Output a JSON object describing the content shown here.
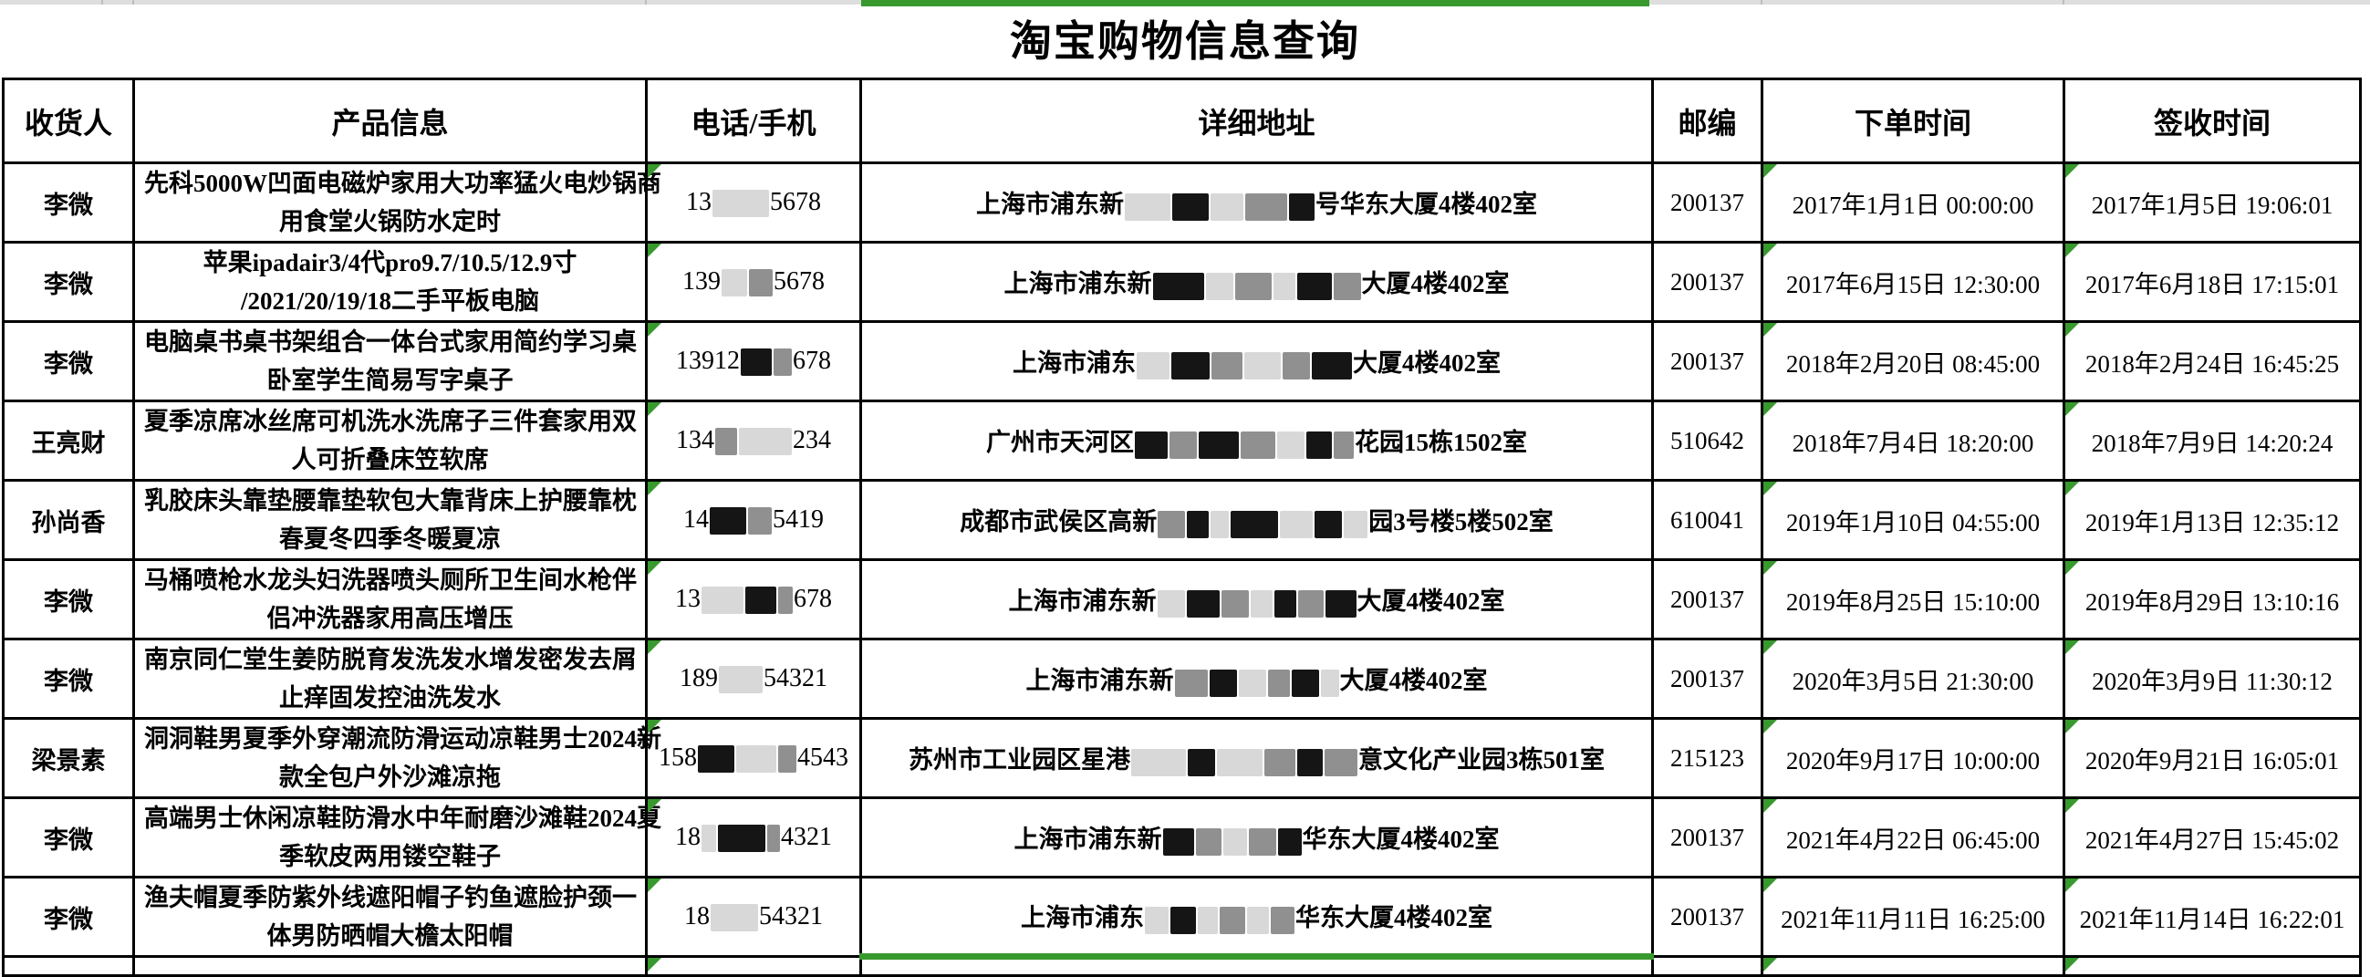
{
  "colors": {
    "accent_green": "#38992e",
    "strip_gray": "#dedede",
    "table_border": "#000000",
    "censor_light": "#d8d8d8",
    "censor_mid": "#909090",
    "censor_dark": "#151515"
  },
  "title": "淘宝购物信息查询",
  "table": {
    "columns": [
      "收货人",
      "产品信息",
      "电话/手机",
      "详细地址",
      "邮编",
      "下单时间",
      "签收时间"
    ],
    "rows": [
      {
        "recipient": "李微",
        "product_lines": [
          "先科5000W凹面电磁炉家用大功率猛火电炒锅商",
          "用食堂火锅防水定时"
        ],
        "phone_segments": [
          {
            "text": "13"
          },
          {
            "mask": "light",
            "width": 62
          },
          {
            "text": "5678"
          }
        ],
        "address_segments": [
          {
            "text": "上海市浦东新"
          },
          {
            "mask": "light",
            "width": 50
          },
          {
            "mask": "dark",
            "width": 40
          },
          {
            "mask": "light",
            "width": 36
          },
          {
            "mask": "mid",
            "width": 46
          },
          {
            "mask": "dark",
            "width": 28
          },
          {
            "text": "号华东大厦4楼402室"
          }
        ],
        "zip": "200137",
        "order_time": "2017年1月1日 00:00:00",
        "sign_time": "2017年1月5日 19:06:01"
      },
      {
        "recipient": "李微",
        "product_lines": [
          "苹果ipadair3/4代pro9.7/10.5/12.9寸",
          "/2021/20/19/18二手平板电脑"
        ],
        "phone_segments": [
          {
            "text": "139"
          },
          {
            "mask": "light",
            "width": 28
          },
          {
            "mask": "mid",
            "width": 26
          },
          {
            "text": "5678"
          }
        ],
        "address_segments": [
          {
            "text": "上海市浦东新"
          },
          {
            "mask": "dark",
            "width": 56
          },
          {
            "mask": "light",
            "width": 30
          },
          {
            "mask": "mid",
            "width": 40
          },
          {
            "mask": "light",
            "width": 24
          },
          {
            "mask": "dark",
            "width": 38
          },
          {
            "mask": "mid",
            "width": 30
          },
          {
            "text": "大厦4楼402室"
          }
        ],
        "zip": "200137",
        "order_time": "2017年6月15日 12:30:00",
        "sign_time": "2017年6月18日 17:15:01"
      },
      {
        "recipient": "李微",
        "product_lines": [
          "电脑桌书桌书架组合一体台式家用简约学习桌",
          "卧室学生简易写字桌子"
        ],
        "phone_segments": [
          {
            "text": "13912"
          },
          {
            "mask": "dark",
            "width": 34
          },
          {
            "mask": "mid",
            "width": 20
          },
          {
            "text": "678"
          }
        ],
        "address_segments": [
          {
            "text": "上海市浦东"
          },
          {
            "mask": "light",
            "width": 36
          },
          {
            "mask": "dark",
            "width": 42
          },
          {
            "mask": "mid",
            "width": 34
          },
          {
            "mask": "light",
            "width": 40
          },
          {
            "mask": "mid",
            "width": 30
          },
          {
            "mask": "dark",
            "width": 44
          },
          {
            "text": "大厦4楼402室"
          }
        ],
        "zip": "200137",
        "order_time": "2018年2月20日 08:45:00",
        "sign_time": "2018年2月24日 16:45:25"
      },
      {
        "recipient": "王亮财",
        "product_lines": [
          "夏季凉席冰丝席可机洗水洗席子三件套家用双",
          "人可折叠床笠软席"
        ],
        "phone_segments": [
          {
            "text": "134"
          },
          {
            "mask": "mid",
            "width": 24
          },
          {
            "mask": "light",
            "width": 58
          },
          {
            "text": "234"
          }
        ],
        "address_segments": [
          {
            "text": "广州市天河区"
          },
          {
            "mask": "dark",
            "width": 36
          },
          {
            "mask": "mid",
            "width": 30
          },
          {
            "mask": "dark",
            "width": 44
          },
          {
            "mask": "mid",
            "width": 38
          },
          {
            "mask": "light",
            "width": 30
          },
          {
            "mask": "dark",
            "width": 28
          },
          {
            "mask": "mid",
            "width": 22
          },
          {
            "text": "花园15栋1502室"
          }
        ],
        "zip": "510642",
        "order_time": "2018年7月4日 18:20:00",
        "sign_time": "2018年7月9日 14:20:24"
      },
      {
        "recipient": "孙尚香",
        "product_lines": [
          "乳胶床头靠垫腰靠垫软包大靠背床上护腰靠枕",
          "春夏冬四季冬暖夏凉"
        ],
        "phone_segments": [
          {
            "text": "14"
          },
          {
            "mask": "dark",
            "width": 40
          },
          {
            "mask": "mid",
            "width": 26
          },
          {
            "text": "5419"
          }
        ],
        "address_segments": [
          {
            "text": "成都市武侯区高新"
          },
          {
            "mask": "mid",
            "width": 30
          },
          {
            "mask": "dark",
            "width": 24
          },
          {
            "mask": "light",
            "width": 20
          },
          {
            "mask": "dark",
            "width": 52
          },
          {
            "mask": "light",
            "width": 36
          },
          {
            "mask": "dark",
            "width": 30
          },
          {
            "mask": "light",
            "width": 26
          },
          {
            "text": "园3号楼5楼502室"
          }
        ],
        "zip": "610041",
        "order_time": "2019年1月10日 04:55:00",
        "sign_time": "2019年1月13日 12:35:12"
      },
      {
        "recipient": "李微",
        "product_lines": [
          "马桶喷枪水龙头妇洗器喷头厕所卫生间水枪伴",
          "侣冲洗器家用高压增压"
        ],
        "phone_segments": [
          {
            "text": "13"
          },
          {
            "mask": "light",
            "width": 46
          },
          {
            "mask": "dark",
            "width": 34
          },
          {
            "mask": "mid",
            "width": 16
          },
          {
            "text": "678"
          }
        ],
        "address_segments": [
          {
            "text": "上海市浦东新"
          },
          {
            "mask": "light",
            "width": 30
          },
          {
            "mask": "dark",
            "width": 36
          },
          {
            "mask": "mid",
            "width": 30
          },
          {
            "mask": "light",
            "width": 24
          },
          {
            "mask": "dark",
            "width": 24
          },
          {
            "mask": "mid",
            "width": 28
          },
          {
            "mask": "dark",
            "width": 34
          },
          {
            "text": "大厦4楼402室"
          }
        ],
        "zip": "200137",
        "order_time": "2019年8月25日 15:10:00",
        "sign_time": "2019年8月29日 13:10:16"
      },
      {
        "recipient": "李微",
        "product_lines": [
          "南京同仁堂生姜防脱育发洗发水增发密发去屑",
          "止痒固发控油洗发水"
        ],
        "phone_segments": [
          {
            "text": "189"
          },
          {
            "mask": "light",
            "width": 48
          },
          {
            "text": "54321"
          }
        ],
        "address_segments": [
          {
            "text": "上海市浦东新"
          },
          {
            "mask": "mid",
            "width": 36
          },
          {
            "mask": "dark",
            "width": 30
          },
          {
            "mask": "light",
            "width": 30
          },
          {
            "mask": "mid",
            "width": 24
          },
          {
            "mask": "dark",
            "width": 30
          },
          {
            "mask": "light",
            "width": 20
          },
          {
            "text": "大厦4楼402室"
          }
        ],
        "zip": "200137",
        "order_time": "2020年3月5日 21:30:00",
        "sign_time": "2020年3月9日 11:30:12"
      },
      {
        "recipient": "梁景素",
        "product_lines": [
          "洞洞鞋男夏季外穿潮流防滑运动凉鞋男士2024新",
          "款全包户外沙滩凉拖"
        ],
        "phone_segments": [
          {
            "text": "158"
          },
          {
            "mask": "dark",
            "width": 40
          },
          {
            "mask": "light",
            "width": 44
          },
          {
            "mask": "mid",
            "width": 20
          },
          {
            "text": "4543"
          }
        ],
        "address_segments": [
          {
            "text": "苏州市工业园区星港"
          },
          {
            "mask": "light",
            "width": 60
          },
          {
            "mask": "dark",
            "width": 30
          },
          {
            "mask": "light",
            "width": 50
          },
          {
            "mask": "mid",
            "width": 34
          },
          {
            "mask": "dark",
            "width": 28
          },
          {
            "mask": "mid",
            "width": 36
          },
          {
            "text": "意文化产业园3栋501室"
          }
        ],
        "zip": "215123",
        "order_time": "2020年9月17日 10:00:00",
        "sign_time": "2020年9月21日 16:05:01"
      },
      {
        "recipient": "李微",
        "product_lines": [
          "高端男士休闲凉鞋防滑水中年耐磨沙滩鞋2024夏",
          "季软皮两用镂空鞋子"
        ],
        "phone_segments": [
          {
            "text": "18"
          },
          {
            "mask": "light",
            "width": 16
          },
          {
            "mask": "dark",
            "width": 52
          },
          {
            "mask": "mid",
            "width": 14
          },
          {
            "text": "4321"
          }
        ],
        "address_segments": [
          {
            "text": "上海市浦东新"
          },
          {
            "mask": "dark",
            "width": 34
          },
          {
            "mask": "mid",
            "width": 28
          },
          {
            "mask": "light",
            "width": 26
          },
          {
            "mask": "mid",
            "width": 30
          },
          {
            "mask": "dark",
            "width": 26
          },
          {
            "text": "华东大厦4楼402室"
          }
        ],
        "zip": "200137",
        "order_time": "2021年4月22日 06:45:00",
        "sign_time": "2021年4月27日 15:45:02"
      },
      {
        "recipient": "李微",
        "product_lines": [
          "渔夫帽夏季防紫外线遮阳帽子钓鱼遮脸护颈一",
          "体男防晒帽大檐太阳帽"
        ],
        "phone_segments": [
          {
            "text": "18"
          },
          {
            "mask": "light",
            "width": 52
          },
          {
            "text": "54321"
          }
        ],
        "address_segments": [
          {
            "text": "上海市浦东"
          },
          {
            "mask": "light",
            "width": 26
          },
          {
            "mask": "dark",
            "width": 28
          },
          {
            "mask": "light",
            "width": 22
          },
          {
            "mask": "mid",
            "width": 28
          },
          {
            "mask": "light",
            "width": 24
          },
          {
            "mask": "mid",
            "width": 26
          },
          {
            "text": "华东大厦4楼402室"
          }
        ],
        "zip": "200137",
        "order_time": "2021年11月11日 16:25:00",
        "sign_time": "2021年11月14日 16:22:01"
      }
    ],
    "partial_next_row": {
      "visible": true,
      "indicator_columns": [
        "电话/手机",
        "下单时间",
        "签收时间"
      ],
      "selected_column": "详细地址"
    }
  }
}
